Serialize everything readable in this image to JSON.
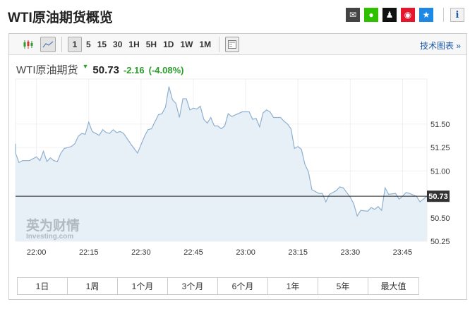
{
  "title": "WTI原油期货概览",
  "share_icons": [
    {
      "name": "email-icon",
      "color": "#444444",
      "glyph": "✉"
    },
    {
      "name": "wechat-icon",
      "color": "#2dc100",
      "glyph": "●"
    },
    {
      "name": "qq-icon",
      "color": "#111111",
      "glyph": "♟"
    },
    {
      "name": "weibo-icon",
      "color": "#e6162d",
      "glyph": "◉"
    },
    {
      "name": "favorite-icon",
      "color": "#1e88e5",
      "glyph": "★"
    }
  ],
  "info_glyph": "i",
  "toolbar": {
    "intervals": [
      "1",
      "5",
      "15",
      "30",
      "1H",
      "5H",
      "1D",
      "1W",
      "1M"
    ],
    "selected_interval": "1",
    "tech_chart": "技术图表 »"
  },
  "quote": {
    "name": "WTI原油期货",
    "price": "50.73",
    "change": "-2.16",
    "change_pct": "(-4.08%)",
    "direction": "down",
    "change_color": "#2a9d2a"
  },
  "ranges": [
    "1日",
    "1周",
    "1个月",
    "3个月",
    "6个月",
    "1年",
    "5年",
    "最大值"
  ],
  "watermark": {
    "cn": "英为财情",
    "en": "Investing.com"
  },
  "chart_data": {
    "type": "area",
    "xlabel": "",
    "ylabel": "",
    "xlim": [
      "21:54",
      "23:52"
    ],
    "ylim": [
      50.25,
      51.98
    ],
    "x_ticks": [
      "22:00",
      "22:15",
      "22:30",
      "22:45",
      "23:00",
      "23:15",
      "23:30",
      "23:45"
    ],
    "y_ticks": [
      "51.50",
      "51.25",
      "51.00",
      "50.50",
      "50.25"
    ],
    "last_value": "50.73",
    "line_color": "#8fb0cf",
    "fill_color": "#e8f0f7",
    "grid": true,
    "x": [
      "21:52",
      "21:54",
      "21:55",
      "21:56",
      "21:58",
      "22:00",
      "22:01",
      "22:02",
      "22:03",
      "22:04",
      "22:05",
      "22:06",
      "22:07",
      "22:08",
      "22:10",
      "22:11",
      "22:12",
      "22:13",
      "22:14",
      "22:15",
      "22:16",
      "22:18",
      "22:19",
      "22:20",
      "22:21",
      "22:22",
      "22:23",
      "22:24",
      "22:25",
      "22:27",
      "22:29",
      "22:30",
      "22:31",
      "22:32",
      "22:33",
      "22:35",
      "22:36",
      "22:37",
      "22:38",
      "22:39",
      "22:40",
      "22:41",
      "22:42",
      "22:43",
      "22:44",
      "22:45",
      "22:46",
      "22:47",
      "22:48",
      "22:49",
      "22:50",
      "22:51",
      "22:52",
      "22:53",
      "22:54",
      "22:55",
      "22:56",
      "22:59",
      "23:00",
      "23:01",
      "23:02",
      "23:03",
      "23:04",
      "23:05",
      "23:06",
      "23:07",
      "23:08",
      "23:10",
      "23:11",
      "23:12",
      "23:13",
      "23:14",
      "23:15",
      "23:16",
      "23:17",
      "23:18",
      "23:19",
      "23:21",
      "23:22",
      "23:23",
      "23:24",
      "23:25",
      "23:26",
      "23:27",
      "23:28",
      "23:30",
      "23:31",
      "23:32",
      "23:33",
      "23:35",
      "23:36",
      "23:37",
      "23:38",
      "23:39",
      "23:40",
      "23:41",
      "23:43",
      "23:44",
      "23:45",
      "23:46",
      "23:47",
      "23:49",
      "23:50",
      "23:51",
      "23:52"
    ],
    "values": [
      51.29,
      51.19,
      51.09,
      51.11,
      51.11,
      51.15,
      51.11,
      51.21,
      51.1,
      51.14,
      51.11,
      51.1,
      51.19,
      51.24,
      51.26,
      51.29,
      51.37,
      51.4,
      51.39,
      51.52,
      51.42,
      51.38,
      51.44,
      51.41,
      51.4,
      51.44,
      51.41,
      51.42,
      51.4,
      51.29,
      51.19,
      51.28,
      51.37,
      51.44,
      51.45,
      51.6,
      51.61,
      51.68,
      51.9,
      51.76,
      51.72,
      51.57,
      51.77,
      51.77,
      51.65,
      51.67,
      51.66,
      51.69,
      51.55,
      51.51,
      51.57,
      51.48,
      51.48,
      51.45,
      51.48,
      51.61,
      51.58,
      51.63,
      51.63,
      51.63,
      51.55,
      51.56,
      51.47,
      51.62,
      51.65,
      51.63,
      51.57,
      51.57,
      51.53,
      51.5,
      51.45,
      51.24,
      51.26,
      51.23,
      51.07,
      50.99,
      50.8,
      50.76,
      50.76,
      50.67,
      50.75,
      50.77,
      50.79,
      50.83,
      50.82,
      50.72,
      50.65,
      50.52,
      50.58,
      50.57,
      50.61,
      50.59,
      50.62,
      50.58,
      50.82,
      50.75,
      50.76,
      50.7,
      50.73,
      50.77,
      50.76,
      50.73,
      50.67,
      50.7,
      50.73
    ]
  }
}
